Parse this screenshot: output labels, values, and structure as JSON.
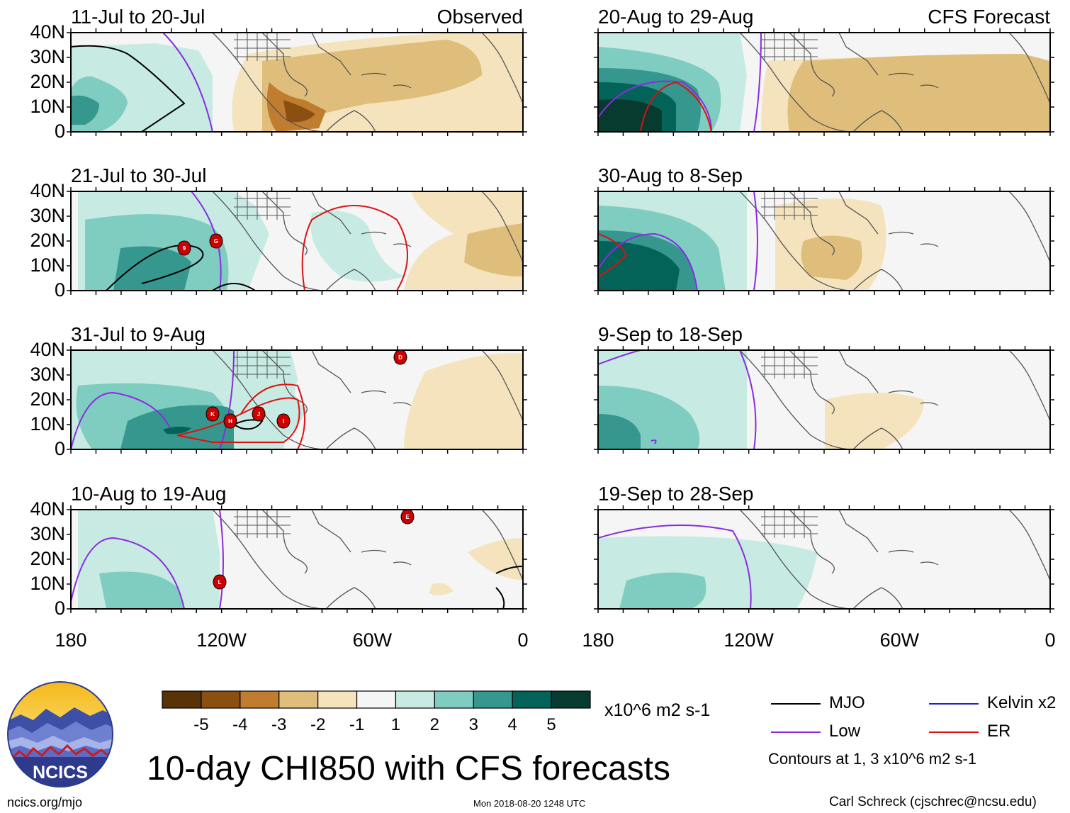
{
  "panels_left": [
    {
      "date_range": "11-Jul to 20-Jul",
      "label": "Observed",
      "storms": []
    },
    {
      "date_range": "21-Jul to 30-Jul",
      "label": "",
      "storms": [
        "9",
        "G"
      ]
    },
    {
      "date_range": "31-Jul to 9-Aug",
      "label": "",
      "storms": [
        "D",
        "K",
        "H",
        "J",
        "I"
      ]
    },
    {
      "date_range": "10-Aug to 19-Aug",
      "label": "",
      "storms": [
        "E",
        "L"
      ]
    }
  ],
  "panels_right": [
    {
      "date_range": "20-Aug to 29-Aug",
      "label": "CFS Forecast"
    },
    {
      "date_range": "30-Aug to 8-Sep",
      "label": ""
    },
    {
      "date_range": "9-Sep to 18-Sep",
      "label": ""
    },
    {
      "date_range": "19-Sep to 28-Sep",
      "label": ""
    }
  ],
  "lat_labels": [
    "40N",
    "30N",
    "20N",
    "10N",
    "0"
  ],
  "lon_labels": [
    "180",
    "120W",
    "60W",
    "0"
  ],
  "colorbar": {
    "tick_labels": [
      "-5",
      "-4",
      "-3",
      "-2",
      "-1",
      "1",
      "2",
      "3",
      "4",
      "5"
    ],
    "colors": [
      "#583307",
      "#8c4f12",
      "#c07d30",
      "#dfbd7a",
      "#f4e3bd",
      "#f5f5f5",
      "#c7ebe3",
      "#7fcdc1",
      "#36978f",
      "#036359",
      "#073b30"
    ],
    "units": "x10^6 m2 s-1"
  },
  "title": "10-day CHI850 with CFS forecasts",
  "legend": {
    "items": [
      {
        "label": "MJO",
        "color": "#000000"
      },
      {
        "label": "Kelvin x2",
        "color": "#2222cc"
      },
      {
        "label": "Low",
        "color": "#8a2be2"
      },
      {
        "label": "ER",
        "color": "#dd1111"
      }
    ],
    "contours_note": "Contours at 1, 3 x10^6 m2 s-1"
  },
  "footer": {
    "website": "ncics.org/mjo",
    "timestamp": "Mon 2018-08-20 1248 UTC",
    "author": "Carl Schreck (cjschrec@ncsu.edu)"
  },
  "logo": {
    "text": "NCICS"
  }
}
